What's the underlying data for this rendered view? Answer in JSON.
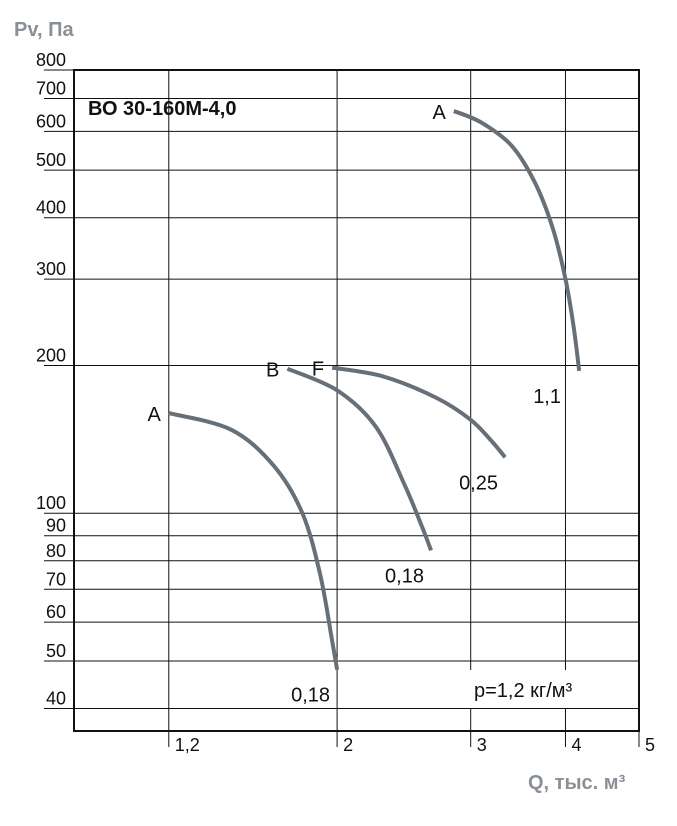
{
  "chart_data": {
    "type": "line",
    "title": "ВО 30-160М-4,0",
    "ylabel": "Pv, Па",
    "xlabel": "Q, тыс. м³",
    "yscale": "log",
    "xscale": "log",
    "ylim": [
      36,
      800
    ],
    "xlim": [
      0.9,
      5
    ],
    "grid": true,
    "y_ticks": [
      40,
      50,
      60,
      70,
      80,
      90,
      100,
      200,
      300,
      400,
      500,
      600,
      700,
      800
    ],
    "x_ticks": [
      {
        "value": 1.2,
        "label": "1,2"
      },
      {
        "value": 2,
        "label": "2"
      },
      {
        "value": 3,
        "label": "3"
      },
      {
        "value": 4,
        "label": "4"
      },
      {
        "value": 5,
        "label": "5"
      }
    ],
    "annotation": "р=1,2 кг/м³",
    "series": [
      {
        "start_label": "A",
        "end_label": "0,18",
        "points": [
          [
            1.2,
            160
          ],
          [
            1.45,
            148
          ],
          [
            1.65,
            125
          ],
          [
            1.8,
            100
          ],
          [
            1.9,
            75
          ],
          [
            1.97,
            55
          ],
          [
            2.0,
            48
          ]
        ]
      },
      {
        "start_label": "B",
        "end_label": "0,18",
        "points": [
          [
            1.72,
            197
          ],
          [
            2.0,
            178
          ],
          [
            2.25,
            150
          ],
          [
            2.45,
            115
          ],
          [
            2.58,
            95
          ],
          [
            2.66,
            84
          ]
        ]
      },
      {
        "start_label": "F",
        "end_label": "0,25",
        "points": [
          [
            1.97,
            198
          ],
          [
            2.3,
            190
          ],
          [
            2.7,
            172
          ],
          [
            3.0,
            155
          ],
          [
            3.2,
            140
          ],
          [
            3.33,
            130
          ]
        ]
      },
      {
        "start_label": "A",
        "end_label": "1,1",
        "points": [
          [
            2.85,
            660
          ],
          [
            3.1,
            625
          ],
          [
            3.4,
            560
          ],
          [
            3.65,
            470
          ],
          [
            3.85,
            380
          ],
          [
            4.0,
            300
          ],
          [
            4.1,
            240
          ],
          [
            4.17,
            195
          ]
        ]
      }
    ]
  }
}
